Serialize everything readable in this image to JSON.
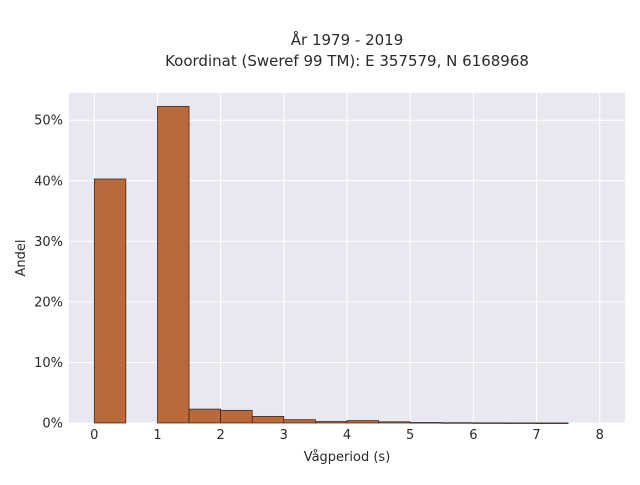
{
  "chart_data": {
    "type": "bar",
    "title_line1": "År 1979 - 2019",
    "title_line2": "Koordinat (Sweref 99 TM): E 357579, N 6168968",
    "xlabel": "Vågperiod (s)",
    "ylabel": "Andel",
    "xlim": [
      -0.4,
      8.4
    ],
    "ylim": [
      0,
      54.5
    ],
    "x_ticks": [
      0,
      1,
      2,
      3,
      4,
      5,
      6,
      7,
      8
    ],
    "x_tick_labels": [
      "0",
      "1",
      "2",
      "3",
      "4",
      "5",
      "6",
      "7",
      "8"
    ],
    "y_ticks": [
      0,
      10,
      20,
      30,
      40,
      50
    ],
    "y_tick_labels": [
      "0%",
      "10%",
      "20%",
      "30%",
      "40%",
      "50%"
    ],
    "grid": true,
    "bar_color": "#b86a3c",
    "bar_edge_color": "#3a1e10",
    "plot_background": "#e8e8f0",
    "bins": [
      {
        "x0": 0.0,
        "x1": 0.5,
        "value": 40.3
      },
      {
        "x0": 0.5,
        "x1": 1.0,
        "value": 0.0
      },
      {
        "x0": 1.0,
        "x1": 1.5,
        "value": 52.3
      },
      {
        "x0": 1.5,
        "x1": 2.0,
        "value": 2.3
      },
      {
        "x0": 2.0,
        "x1": 2.5,
        "value": 2.1
      },
      {
        "x0": 2.5,
        "x1": 3.0,
        "value": 1.1
      },
      {
        "x0": 3.0,
        "x1": 3.5,
        "value": 0.55
      },
      {
        "x0": 3.5,
        "x1": 4.0,
        "value": 0.25
      },
      {
        "x0": 4.0,
        "x1": 4.5,
        "value": 0.4
      },
      {
        "x0": 4.5,
        "x1": 5.0,
        "value": 0.2
      },
      {
        "x0": 5.0,
        "x1": 5.5,
        "value": 0.08
      },
      {
        "x0": 5.5,
        "x1": 6.0,
        "value": 0.05
      },
      {
        "x0": 6.0,
        "x1": 6.5,
        "value": 0.03
      },
      {
        "x0": 6.5,
        "x1": 7.0,
        "value": 0.02
      },
      {
        "x0": 7.0,
        "x1": 7.5,
        "value": 0.01
      }
    ]
  }
}
